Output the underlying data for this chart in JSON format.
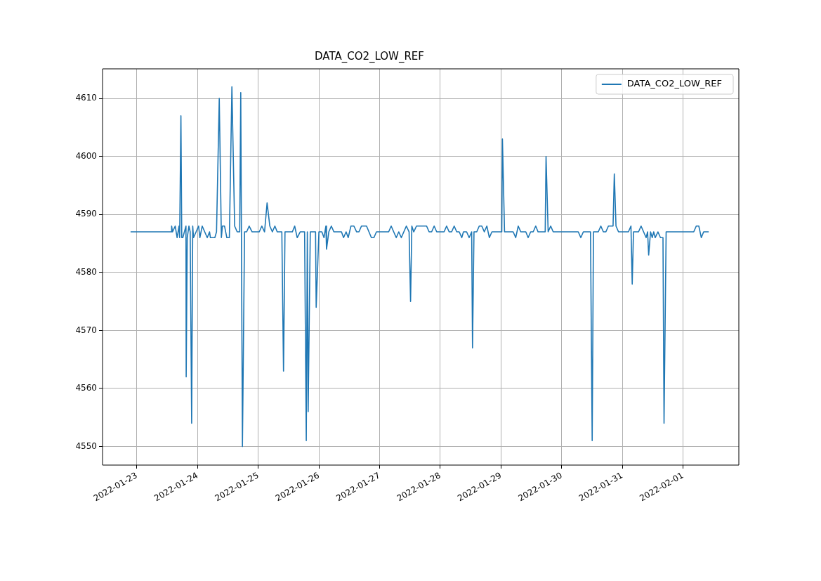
{
  "chart_data": {
    "type": "line",
    "title": "DATA_CO2_LOW_REF",
    "x": [
      "2022-01-22T21:30",
      "2022-01-23T13:40",
      "2022-01-23T13:45",
      "2022-01-23T14:05",
      "2022-01-23T15:10",
      "2022-01-23T15:55",
      "2022-01-23T16:40",
      "2022-01-23T16:55",
      "2022-01-23T17:25",
      "2022-01-23T17:45",
      "2022-01-23T18:10",
      "2022-01-23T19:25",
      "2022-01-23T19:30",
      "2022-01-23T19:55",
      "2022-01-23T20:35",
      "2022-01-23T21:05",
      "2022-01-23T21:40",
      "2022-01-23T22:05",
      "2022-01-23T22:25",
      "2022-01-24T00:25",
      "2022-01-24T00:55",
      "2022-01-24T01:50",
      "2022-01-24T03:50",
      "2022-01-24T04:45",
      "2022-01-24T05:05",
      "2022-01-24T06:50",
      "2022-01-24T07:30",
      "2022-01-24T08:35",
      "2022-01-24T09:25",
      "2022-01-24T09:50",
      "2022-01-24T10:40",
      "2022-01-24T11:35",
      "2022-01-24T12:35",
      "2022-01-24T13:35",
      "2022-01-24T14:40",
      "2022-01-24T15:40",
      "2022-01-24T16:40",
      "2022-01-24T17:05",
      "2022-01-24T17:45",
      "2022-01-24T18:35",
      "2022-01-24T19:25",
      "2022-01-24T20:25",
      "2022-01-24T21:35",
      "2022-01-25T00:25",
      "2022-01-25T01:25",
      "2022-01-25T02:30",
      "2022-01-25T03:30",
      "2022-01-25T04:35",
      "2022-01-25T05:35",
      "2022-01-25T06:35",
      "2022-01-25T07:30",
      "2022-01-25T09:20",
      "2022-01-25T10:00",
      "2022-01-25T10:35",
      "2022-01-25T13:30",
      "2022-01-25T14:25",
      "2022-01-25T15:25",
      "2022-01-25T16:35",
      "2022-01-25T18:20",
      "2022-01-25T19:00",
      "2022-01-25T19:25",
      "2022-01-25T19:45",
      "2022-01-25T20:35",
      "2022-01-25T22:40",
      "2022-01-25T22:55",
      "2022-01-26T00:00",
      "2022-01-26T01:10",
      "2022-01-26T02:00",
      "2022-01-26T02:45",
      "2022-01-26T03:00",
      "2022-01-26T03:55",
      "2022-01-26T04:55",
      "2022-01-26T05:55",
      "2022-01-26T08:55",
      "2022-01-26T09:45",
      "2022-01-26T10:45",
      "2022-01-26T11:35",
      "2022-01-26T12:40",
      "2022-01-26T13:50",
      "2022-01-26T14:55",
      "2022-01-26T15:50",
      "2022-01-26T16:50",
      "2022-01-26T18:50",
      "2022-01-26T20:45",
      "2022-01-26T21:45",
      "2022-01-26T22:45",
      "2022-01-27T03:35",
      "2022-01-27T04:35",
      "2022-01-27T06:35",
      "2022-01-27T07:35",
      "2022-01-27T08:35",
      "2022-01-27T10:35",
      "2022-01-27T11:40",
      "2022-01-27T12:15",
      "2022-01-27T12:45",
      "2022-01-27T13:30",
      "2022-01-27T14:35",
      "2022-01-27T18:35",
      "2022-01-27T19:35",
      "2022-01-27T20:35",
      "2022-01-27T21:35",
      "2022-01-27T22:35",
      "2022-01-28T01:30",
      "2022-01-28T02:30",
      "2022-01-28T03:30",
      "2022-01-28T04:30",
      "2022-01-28T05:30",
      "2022-01-28T06:30",
      "2022-01-28T07:30",
      "2022-01-28T08:30",
      "2022-01-28T09:10",
      "2022-01-28T10:25",
      "2022-01-28T11:25",
      "2022-01-28T12:25",
      "2022-01-28T12:45",
      "2022-01-28T13:20",
      "2022-01-28T14:25",
      "2022-01-28T15:25",
      "2022-01-28T16:25",
      "2022-01-28T17:25",
      "2022-01-28T18:25",
      "2022-01-28T19:25",
      "2022-01-28T20:25",
      "2022-01-29T00:20",
      "2022-01-29T00:35",
      "2022-01-29T01:25",
      "2022-01-29T04:50",
      "2022-01-29T05:50",
      "2022-01-29T06:50",
      "2022-01-29T07:50",
      "2022-01-29T09:50",
      "2022-01-29T10:45",
      "2022-01-29T11:45",
      "2022-01-29T12:45",
      "2022-01-29T13:45",
      "2022-01-29T14:40",
      "2022-01-29T17:30",
      "2022-01-29T17:50",
      "2022-01-29T18:40",
      "2022-01-29T19:40",
      "2022-01-29T20:40",
      "2022-01-30T06:35",
      "2022-01-30T07:35",
      "2022-01-30T08:35",
      "2022-01-30T11:25",
      "2022-01-30T12:05",
      "2022-01-30T12:35",
      "2022-01-30T14:30",
      "2022-01-30T15:30",
      "2022-01-30T16:30",
      "2022-01-30T17:30",
      "2022-01-30T18:30",
      "2022-01-30T20:20",
      "2022-01-30T20:50",
      "2022-01-30T21:30",
      "2022-01-30T22:30",
      "2022-01-31T02:25",
      "2022-01-31T03:25",
      "2022-01-31T03:55",
      "2022-01-31T04:25",
      "2022-01-31T06:25",
      "2022-01-31T07:25",
      "2022-01-31T09:25",
      "2022-01-31T10:00",
      "2022-01-31T10:25",
      "2022-01-31T11:10",
      "2022-01-31T11:50",
      "2022-01-31T12:25",
      "2022-01-31T13:00",
      "2022-01-31T14:05",
      "2022-01-31T15:05",
      "2022-01-31T16:05",
      "2022-01-31T16:30",
      "2022-01-31T17:20",
      "2022-02-01T04:15",
      "2022-02-01T05:15",
      "2022-02-01T06:15",
      "2022-02-01T07:15",
      "2022-02-01T08:10",
      "2022-02-01T10:10"
    ],
    "series": [
      {
        "name": "DATA_CO2_LOW_REF",
        "color": "#1f77b4",
        "values": [
          4587,
          4587,
          4588,
          4587,
          4588,
          4586,
          4588,
          4586,
          4607,
          4586,
          4586,
          4588,
          4562,
          4586,
          4588,
          4587,
          4554,
          4588,
          4586,
          4588,
          4586,
          4588,
          4586,
          4587,
          4586,
          4586,
          4587,
          4610,
          4586,
          4588,
          4588,
          4586,
          4586,
          4612,
          4588,
          4587,
          4587,
          4611,
          4550,
          4587,
          4587,
          4588,
          4587,
          4587,
          4588,
          4587,
          4592,
          4588,
          4587,
          4588,
          4587,
          4587,
          4563,
          4587,
          4587,
          4588,
          4586,
          4587,
          4587,
          4551,
          4587,
          4556,
          4587,
          4587,
          4574,
          4587,
          4587,
          4586,
          4588,
          4584,
          4587,
          4588,
          4587,
          4587,
          4586,
          4587,
          4586,
          4588,
          4588,
          4587,
          4587,
          4588,
          4588,
          4586,
          4586,
          4587,
          4587,
          4588,
          4586,
          4587,
          4586,
          4588,
          4587,
          4575,
          4588,
          4587,
          4588,
          4588,
          4587,
          4587,
          4588,
          4587,
          4587,
          4588,
          4587,
          4587,
          4588,
          4587,
          4587,
          4586,
          4587,
          4587,
          4586,
          4587,
          4567,
          4587,
          4587,
          4588,
          4588,
          4587,
          4588,
          4586,
          4587,
          4587,
          4603,
          4587,
          4587,
          4586,
          4588,
          4587,
          4587,
          4586,
          4587,
          4587,
          4588,
          4587,
          4587,
          4600,
          4587,
          4588,
          4587,
          4587,
          4586,
          4587,
          4587,
          4551,
          4587,
          4587,
          4588,
          4587,
          4587,
          4588,
          4588,
          4597,
          4588,
          4587,
          4587,
          4588,
          4578,
          4587,
          4587,
          4588,
          4586,
          4587,
          4583,
          4587,
          4586,
          4587,
          4586,
          4587,
          4586,
          4586,
          4554,
          4587,
          4587,
          4588,
          4588,
          4586,
          4587,
          4587
        ]
      }
    ],
    "xlim": [
      "2022-01-22T10:25",
      "2022-02-01T22:05"
    ],
    "xticks": [
      "2022-01-23",
      "2022-01-24",
      "2022-01-25",
      "2022-01-26",
      "2022-01-27",
      "2022-01-28",
      "2022-01-29",
      "2022-01-30",
      "2022-01-31",
      "2022-02-01"
    ],
    "ylim": [
      4546.8,
      4615.1
    ],
    "yticks": [
      4550,
      4560,
      4570,
      4580,
      4590,
      4600,
      4610
    ],
    "grid": true,
    "legend": "top right",
    "line_style": "solid",
    "marker": "none"
  }
}
